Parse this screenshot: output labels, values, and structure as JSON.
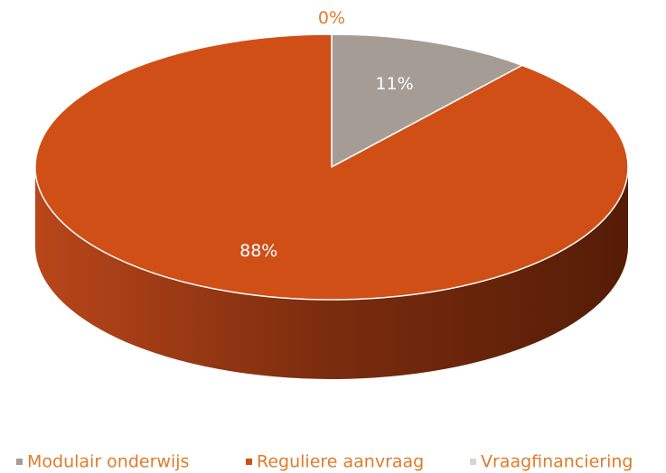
{
  "chart_data": {
    "type": "pie",
    "categories": [
      "Modulair onderwijs",
      "Reguliere aanvraag",
      "Vraagfinanciering"
    ],
    "values": [
      11,
      88,
      0
    ],
    "value_labels": [
      "11%",
      "88%",
      "0%"
    ],
    "colors": [
      "#a59d95",
      "#d04f17",
      "#d9d4cc"
    ],
    "legend": "bottom"
  }
}
